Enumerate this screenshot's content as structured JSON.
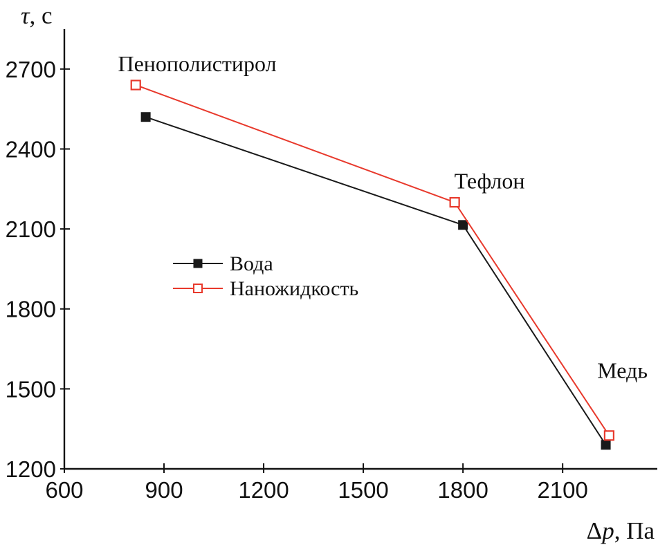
{
  "page": {
    "background": "#ffffff",
    "text_color": "#111111"
  },
  "chart_data": {
    "type": "line",
    "title": "",
    "xlabel": "Δp, Па",
    "ylabel": "τ, с",
    "xlabel_parts": [
      {
        "t": "Δ",
        "i": false
      },
      {
        "t": "p",
        "i": true
      },
      {
        "t": ", Па",
        "i": false
      }
    ],
    "ylabel_parts": [
      {
        "t": "τ",
        "i": true
      },
      {
        "t": ", с",
        "i": false
      }
    ],
    "xlim": [
      600,
      2385
    ],
    "ylim": [
      1200,
      2850
    ],
    "xticks": [
      600,
      900,
      1200,
      1500,
      1800,
      2100
    ],
    "yticks": [
      1200,
      1500,
      1800,
      2100,
      2400,
      2700
    ],
    "grid": false,
    "axis_color": "#111111",
    "legend_position": "inside-left-middle",
    "series": [
      {
        "name": "Вода",
        "color": "#1a1a1a",
        "marker": "filled-square",
        "points": [
          {
            "x": 845,
            "y": 2520
          },
          {
            "x": 1800,
            "y": 2115
          },
          {
            "x": 2230,
            "y": 1290
          }
        ]
      },
      {
        "name": "Наножидкость",
        "color": "#e8392c",
        "marker": "open-square",
        "points": [
          {
            "x": 815,
            "y": 2640
          },
          {
            "x": 1775,
            "y": 2200
          },
          {
            "x": 2240,
            "y": 1325
          }
        ]
      }
    ],
    "annotations": [
      {
        "text": "Пенополистирол",
        "x": 1000,
        "y": 2720,
        "anchor": "middle"
      },
      {
        "text": "Тефлон",
        "x": 1880,
        "y": 2280,
        "anchor": "middle"
      },
      {
        "text": "Медь",
        "x": 2280,
        "y": 1570,
        "anchor": "middle"
      }
    ]
  }
}
